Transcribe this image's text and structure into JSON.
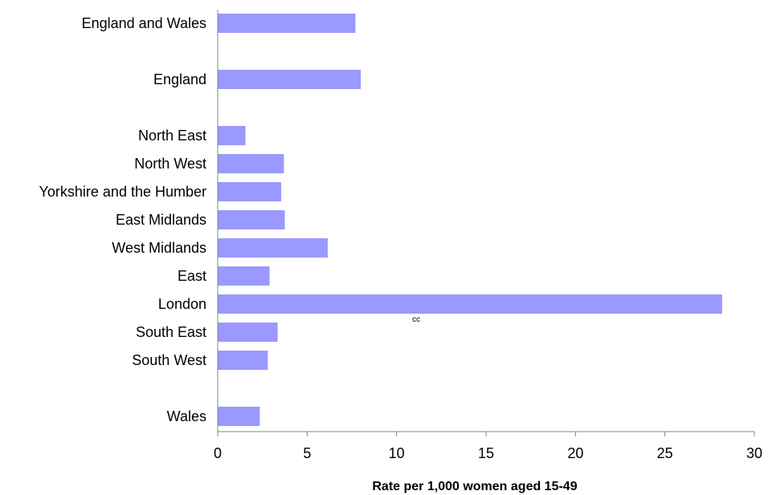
{
  "chart_data": {
    "type": "bar",
    "orientation": "horizontal",
    "categories": [
      "England and Wales",
      "England",
      "North East",
      "North West",
      "Yorkshire and the Humber",
      "East Midlands",
      "West Midlands",
      "East",
      "London",
      "South East",
      "South West",
      "Wales"
    ],
    "values": [
      7.7,
      8.0,
      1.55,
      3.7,
      3.55,
      3.75,
      6.15,
      2.9,
      28.2,
      3.35,
      2.8,
      2.35
    ],
    "xlabel": "Rate per 1,000 women aged 15-49",
    "xlim": [
      0,
      30
    ],
    "xticks": [
      0,
      5,
      10,
      15,
      20,
      25,
      30
    ],
    "grid": false,
    "legend": "none",
    "bar_color": "#9999ff",
    "annotations": [
      {
        "text": "cc",
        "category": "London",
        "x": 11.1
      }
    ]
  }
}
